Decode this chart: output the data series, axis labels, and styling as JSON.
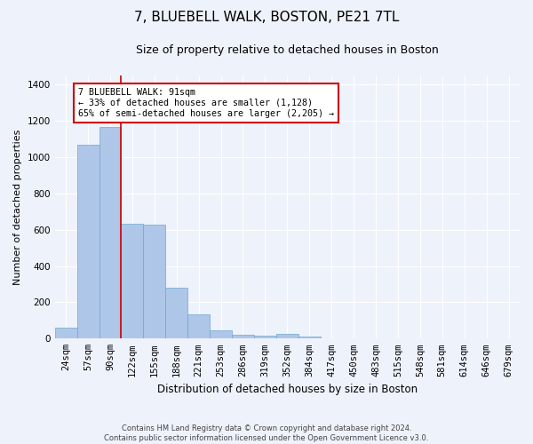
{
  "title": "7, BLUEBELL WALK, BOSTON, PE21 7TL",
  "subtitle": "Size of property relative to detached houses in Boston",
  "xlabel": "Distribution of detached houses by size in Boston",
  "ylabel": "Number of detached properties",
  "footnote": "Contains HM Land Registry data © Crown copyright and database right 2024.\nContains public sector information licensed under the Open Government Licence v3.0.",
  "categories": [
    "24sqm",
    "57sqm",
    "90sqm",
    "122sqm",
    "155sqm",
    "188sqm",
    "221sqm",
    "253sqm",
    "286sqm",
    "319sqm",
    "352sqm",
    "384sqm",
    "417sqm",
    "450sqm",
    "483sqm",
    "515sqm",
    "548sqm",
    "581sqm",
    "614sqm",
    "646sqm",
    "679sqm"
  ],
  "values": [
    62,
    1070,
    1165,
    635,
    630,
    280,
    135,
    45,
    22,
    18,
    25,
    12,
    0,
    0,
    0,
    0,
    0,
    0,
    0,
    0,
    0
  ],
  "bar_color": "#aec6e8",
  "bar_edge_color": "#6fa8d0",
  "highlight_index": 2,
  "highlight_color_red": "#cc0000",
  "annotation_text": "7 BLUEBELL WALK: 91sqm\n← 33% of detached houses are smaller (1,128)\n65% of semi-detached houses are larger (2,205) →",
  "ylim": [
    0,
    1450
  ],
  "yticks": [
    0,
    200,
    400,
    600,
    800,
    1000,
    1200,
    1400
  ],
  "bg_color": "#eef2fb",
  "grid_color": "#ffffff",
  "title_fontsize": 11,
  "subtitle_fontsize": 9,
  "tick_fontsize": 7.5,
  "ylabel_fontsize": 8,
  "xlabel_fontsize": 8.5
}
